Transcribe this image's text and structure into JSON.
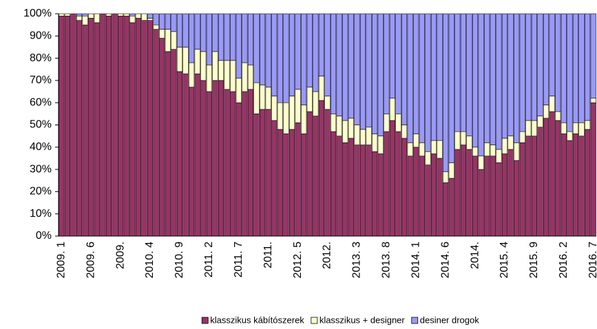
{
  "chart_data": {
    "type": "stacked_bar_100",
    "categories": [
      "2009. 1",
      null,
      null,
      null,
      null,
      "2009. 6",
      null,
      null,
      null,
      null,
      "2009.",
      null,
      null,
      null,
      null,
      "2010. 4",
      null,
      null,
      null,
      null,
      "2010. 9",
      null,
      null,
      null,
      null,
      "2011. 2",
      null,
      null,
      null,
      null,
      "2011. 7",
      null,
      null,
      null,
      null,
      "2011.",
      null,
      null,
      null,
      null,
      "2012. 5",
      null,
      null,
      null,
      null,
      "2012.",
      null,
      null,
      null,
      null,
      "2013. 3",
      null,
      null,
      null,
      null,
      "2013. 8",
      null,
      null,
      null,
      null,
      "2014. 1",
      null,
      null,
      null,
      null,
      "2014. 6",
      null,
      null,
      null,
      null,
      "2014.",
      null,
      null,
      null,
      null,
      "2015. 4",
      null,
      null,
      null,
      null,
      "2015. 9",
      null,
      null,
      null,
      null,
      "2016. 2",
      null,
      null,
      null,
      null,
      "2016. 7"
    ],
    "series": [
      {
        "name": "klasszikus kábítószerek",
        "color": "#993366",
        "values": [
          99,
          99,
          100,
          97,
          95,
          98,
          96,
          100,
          99,
          100,
          99,
          99,
          96,
          98,
          97,
          97,
          93,
          89,
          83,
          84,
          74,
          73,
          67,
          73,
          70,
          65,
          70,
          70,
          66,
          65,
          60,
          65,
          66,
          55,
          57,
          57,
          52,
          48,
          46,
          48,
          51,
          46,
          56,
          54,
          61,
          57,
          47,
          45,
          42,
          44,
          41,
          41,
          41,
          38,
          37,
          47,
          52,
          47,
          44,
          36,
          40,
          36,
          32,
          37,
          35,
          24,
          26,
          39,
          41,
          39,
          36,
          30,
          36,
          36,
          33,
          37,
          39,
          34,
          42,
          45,
          45,
          49,
          53,
          56,
          52,
          46,
          43,
          46,
          45,
          48,
          60
        ]
      },
      {
        "name": "klasszikus + designer",
        "color": "#ffffcc",
        "values": [
          1,
          1,
          0,
          2,
          4,
          2,
          4,
          0,
          1,
          0,
          1,
          1,
          3,
          2,
          3,
          1,
          2,
          4,
          10,
          8,
          11,
          12,
          11,
          11,
          13,
          12,
          13,
          9,
          13,
          14,
          11,
          13,
          11,
          14,
          11,
          10,
          11,
          12,
          14,
          15,
          15,
          13,
          11,
          11,
          11,
          6,
          8,
          9,
          10,
          9,
          9,
          7,
          8,
          8,
          8,
          8,
          10,
          8,
          6,
          6,
          6,
          6,
          6,
          6,
          8,
          5,
          7,
          8,
          6,
          6,
          4,
          6,
          6,
          5,
          6,
          7,
          6,
          8,
          5,
          7,
          7,
          5,
          6,
          7,
          4,
          5,
          4,
          5,
          6,
          4,
          2
        ]
      },
      {
        "name": "desiner drogok",
        "color": "#9999ff",
        "values": [
          0,
          0,
          0,
          1,
          1,
          0,
          0,
          0,
          0,
          0,
          0,
          0,
          1,
          0,
          0,
          2,
          5,
          7,
          7,
          8,
          15,
          15,
          22,
          16,
          17,
          23,
          17,
          21,
          21,
          21,
          29,
          22,
          23,
          31,
          32,
          33,
          37,
          40,
          40,
          37,
          34,
          41,
          33,
          35,
          28,
          37,
          45,
          46,
          48,
          47,
          50,
          52,
          51,
          54,
          55,
          45,
          38,
          45,
          50,
          58,
          54,
          58,
          62,
          57,
          57,
          71,
          67,
          53,
          53,
          55,
          60,
          64,
          58,
          59,
          61,
          56,
          55,
          58,
          53,
          48,
          48,
          46,
          41,
          37,
          44,
          49,
          53,
          49,
          49,
          48,
          38
        ]
      }
    ],
    "ylim": [
      0,
      100
    ],
    "yticks": [
      {
        "value": 0,
        "label": "0%"
      },
      {
        "value": 10,
        "label": "10%"
      },
      {
        "value": 20,
        "label": "20%"
      },
      {
        "value": 30,
        "label": "30%"
      },
      {
        "value": 40,
        "label": "40%"
      },
      {
        "value": 50,
        "label": "50%"
      },
      {
        "value": 60,
        "label": "60%"
      },
      {
        "value": 70,
        "label": "70%"
      },
      {
        "value": 80,
        "label": "80%"
      },
      {
        "value": 90,
        "label": "90%"
      },
      {
        "value": 100,
        "label": "100%"
      }
    ],
    "grid": false,
    "legend": "bottom"
  }
}
